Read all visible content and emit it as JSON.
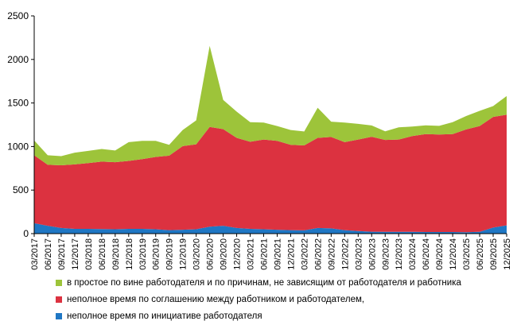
{
  "chart_data": {
    "type": "area",
    "stacked": true,
    "title": "",
    "xlabel": "",
    "ylabel": "",
    "ylim": [
      0,
      2500
    ],
    "y_ticks": [
      0,
      500,
      1000,
      1500,
      2000,
      2500
    ],
    "grid": false,
    "legend_position": "bottom",
    "categories": [
      "03/2017",
      "06/2017",
      "09/2017",
      "12/2017",
      "03/2018",
      "06/2018",
      "09/2018",
      "12/2018",
      "03/2019",
      "06/2019",
      "09/2019",
      "12/2019",
      "03/2020",
      "06/2020",
      "09/2020",
      "12/2020",
      "03/2021",
      "06/2021",
      "09/2021",
      "12/2021",
      "03/2022",
      "06/2022",
      "09/2022",
      "12/2022",
      "03/2023",
      "06/2023",
      "09/2023",
      "12/2023",
      "03/2024",
      "06/2024",
      "09/2024",
      "12/2024",
      "03/2025",
      "06/2025",
      "09/2025",
      "12/2025"
    ],
    "series": [
      {
        "name": "неполное время по инициативе работодателя",
        "color": "#1f77c4",
        "values": [
          120,
          90,
          65,
          55,
          55,
          52,
          50,
          55,
          55,
          50,
          40,
          45,
          50,
          80,
          90,
          65,
          55,
          50,
          45,
          40,
          38,
          65,
          60,
          40,
          30,
          22,
          20,
          20,
          20,
          18,
          18,
          18,
          16,
          20,
          70,
          95
        ]
      },
      {
        "name": "неполное время по соглашению между работником и работодателем,",
        "color": "#dc3240",
        "values": [
          780,
          700,
          720,
          740,
          755,
          775,
          770,
          780,
          800,
          830,
          855,
          960,
          975,
          1145,
          1110,
          1035,
          1000,
          1030,
          1020,
          980,
          975,
          1035,
          1050,
          1010,
          1050,
          1090,
          1055,
          1060,
          1100,
          1125,
          1120,
          1125,
          1180,
          1215,
          1270,
          1270
        ]
      },
      {
        "name": "в простое по вине работодателя и по причинам, не зависящим от работодателя и работника",
        "color": "#9dc43a",
        "values": [
          170,
          110,
          105,
          135,
          140,
          145,
          135,
          215,
          210,
          185,
          125,
          185,
          275,
          930,
          335,
          300,
          225,
          195,
          170,
          170,
          160,
          345,
          175,
          225,
          180,
          130,
          100,
          140,
          110,
          100,
          100,
          137,
          154,
          175,
          125,
          215
        ]
      }
    ],
    "legend_order": [
      2,
      1,
      0
    ]
  }
}
